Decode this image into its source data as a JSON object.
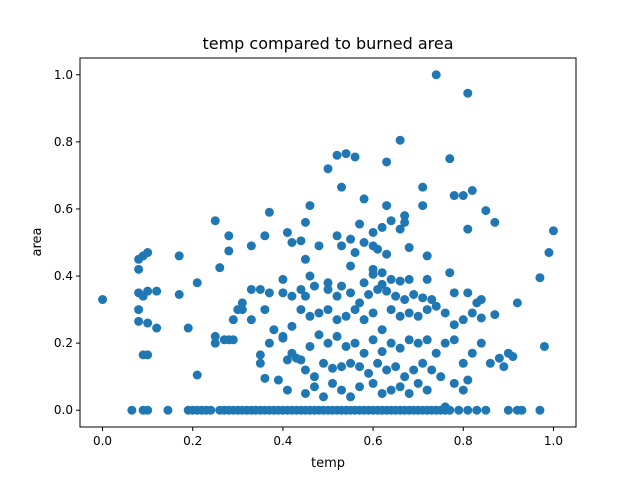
{
  "chart_data": {
    "type": "scatter",
    "title": "temp compared to burned area",
    "xlabel": "temp",
    "ylabel": "area",
    "xlim": [
      -0.05,
      1.05
    ],
    "ylim": [
      -0.05,
      1.05
    ],
    "xticks": [
      {
        "value": 0.0,
        "label": "0.0"
      },
      {
        "value": 0.2,
        "label": "0.2"
      },
      {
        "value": 0.4,
        "label": "0.4"
      },
      {
        "value": 0.6,
        "label": "0.6"
      },
      {
        "value": 0.8,
        "label": "0.8"
      },
      {
        "value": 1.0,
        "label": "1.0"
      }
    ],
    "yticks": [
      {
        "value": 0.0,
        "label": "0.0"
      },
      {
        "value": 0.2,
        "label": "0.2"
      },
      {
        "value": 0.4,
        "label": "0.4"
      },
      {
        "value": 0.6,
        "label": "0.6"
      },
      {
        "value": 0.8,
        "label": "0.8"
      },
      {
        "value": 1.0,
        "label": "1.0"
      }
    ],
    "grid": false,
    "legend": "none",
    "marker_color": "#1f77b4",
    "series": [
      {
        "points": [
          [
            0.74,
            1.0
          ],
          [
            0.81,
            0.945
          ],
          [
            0.66,
            0.805
          ],
          [
            0.77,
            0.75
          ],
          [
            0.5,
            0.72
          ],
          [
            0.52,
            0.76
          ],
          [
            0.54,
            0.765
          ],
          [
            0.56,
            0.755
          ],
          [
            0.63,
            0.74
          ],
          [
            0.53,
            0.665
          ],
          [
            0.71,
            0.665
          ],
          [
            0.58,
            0.63
          ],
          [
            0.78,
            0.64
          ],
          [
            0.8,
            0.64
          ],
          [
            0.82,
            0.655
          ],
          [
            0.63,
            0.61
          ],
          [
            0.46,
            0.61
          ],
          [
            0.71,
            0.61
          ],
          [
            0.85,
            0.595
          ],
          [
            0.25,
            0.565
          ],
          [
            0.37,
            0.59
          ],
          [
            0.45,
            0.56
          ],
          [
            0.57,
            0.555
          ],
          [
            0.64,
            0.565
          ],
          [
            0.67,
            0.58
          ],
          [
            0.81,
            0.54
          ],
          [
            0.87,
            0.56
          ],
          [
            0.41,
            0.53
          ],
          [
            0.52,
            0.52
          ],
          [
            0.55,
            0.51
          ],
          [
            0.6,
            0.53
          ],
          [
            0.62,
            0.545
          ],
          [
            0.66,
            0.54
          ],
          [
            0.67,
            0.56
          ],
          [
            1.0,
            0.535
          ],
          [
            0.28,
            0.52
          ],
          [
            0.33,
            0.49
          ],
          [
            0.36,
            0.52
          ],
          [
            0.42,
            0.5
          ],
          [
            0.44,
            0.505
          ],
          [
            0.48,
            0.49
          ],
          [
            0.53,
            0.49
          ],
          [
            0.56,
            0.47
          ],
          [
            0.58,
            0.5
          ],
          [
            0.6,
            0.49
          ],
          [
            0.61,
            0.48
          ],
          [
            0.63,
            0.465
          ],
          [
            0.68,
            0.485
          ],
          [
            0.72,
            0.46
          ],
          [
            0.99,
            0.47
          ],
          [
            0.08,
            0.45
          ],
          [
            0.09,
            0.46
          ],
          [
            0.1,
            0.47
          ],
          [
            0.17,
            0.46
          ],
          [
            0.26,
            0.425
          ],
          [
            0.28,
            0.475
          ],
          [
            0.45,
            0.45
          ],
          [
            0.55,
            0.43
          ],
          [
            0.6,
            0.42
          ],
          [
            0.62,
            0.41
          ],
          [
            0.08,
            0.42
          ],
          [
            0.21,
            0.38
          ],
          [
            0.4,
            0.39
          ],
          [
            0.44,
            0.36
          ],
          [
            0.46,
            0.4
          ],
          [
            0.5,
            0.38
          ],
          [
            0.53,
            0.37
          ],
          [
            0.58,
            0.38
          ],
          [
            0.6,
            0.405
          ],
          [
            0.62,
            0.375
          ],
          [
            0.64,
            0.39
          ],
          [
            0.66,
            0.385
          ],
          [
            0.68,
            0.39
          ],
          [
            0.72,
            0.39
          ],
          [
            0.77,
            0.41
          ],
          [
            0.97,
            0.395
          ],
          [
            0.08,
            0.35
          ],
          [
            0.09,
            0.34
          ],
          [
            0.1,
            0.355
          ],
          [
            0.12,
            0.355
          ],
          [
            0.17,
            0.345
          ],
          [
            0.3,
            0.3
          ],
          [
            0.31,
            0.32
          ],
          [
            0.33,
            0.36
          ],
          [
            0.35,
            0.36
          ],
          [
            0.37,
            0.35
          ],
          [
            0.4,
            0.35
          ],
          [
            0.42,
            0.34
          ],
          [
            0.45,
            0.34
          ],
          [
            0.47,
            0.37
          ],
          [
            0.5,
            0.36
          ],
          [
            0.52,
            0.34
          ],
          [
            0.55,
            0.35
          ],
          [
            0.57,
            0.32
          ],
          [
            0.59,
            0.345
          ],
          [
            0.61,
            0.36
          ],
          [
            0.63,
            0.355
          ],
          [
            0.65,
            0.34
          ],
          [
            0.67,
            0.33
          ],
          [
            0.69,
            0.345
          ],
          [
            0.71,
            0.335
          ],
          [
            0.73,
            0.33
          ],
          [
            0.78,
            0.35
          ],
          [
            0.81,
            0.35
          ],
          [
            0.83,
            0.32
          ],
          [
            0.84,
            0.33
          ],
          [
            0.92,
            0.32
          ],
          [
            0.0,
            0.33
          ],
          [
            0.08,
            0.3
          ],
          [
            0.08,
            0.265
          ],
          [
            0.1,
            0.26
          ],
          [
            0.12,
            0.245
          ],
          [
            0.19,
            0.245
          ],
          [
            0.25,
            0.22
          ],
          [
            0.27,
            0.21
          ],
          [
            0.29,
            0.27
          ],
          [
            0.31,
            0.3
          ],
          [
            0.33,
            0.27
          ],
          [
            0.36,
            0.3
          ],
          [
            0.38,
            0.24
          ],
          [
            0.4,
            0.22
          ],
          [
            0.42,
            0.25
          ],
          [
            0.44,
            0.3
          ],
          [
            0.46,
            0.28
          ],
          [
            0.48,
            0.29
          ],
          [
            0.5,
            0.3
          ],
          [
            0.52,
            0.27
          ],
          [
            0.54,
            0.28
          ],
          [
            0.56,
            0.3
          ],
          [
            0.58,
            0.27
          ],
          [
            0.6,
            0.29
          ],
          [
            0.62,
            0.24
          ],
          [
            0.64,
            0.3
          ],
          [
            0.66,
            0.28
          ],
          [
            0.68,
            0.29
          ],
          [
            0.7,
            0.28
          ],
          [
            0.72,
            0.3
          ],
          [
            0.74,
            0.31
          ],
          [
            0.76,
            0.29
          ],
          [
            0.78,
            0.255
          ],
          [
            0.8,
            0.27
          ],
          [
            0.82,
            0.29
          ],
          [
            0.84,
            0.275
          ],
          [
            0.87,
            0.285
          ],
          [
            0.25,
            0.2
          ],
          [
            0.28,
            0.21
          ],
          [
            0.29,
            0.21
          ],
          [
            0.35,
            0.165
          ],
          [
            0.37,
            0.2
          ],
          [
            0.4,
            0.215
          ],
          [
            0.42,
            0.17
          ],
          [
            0.44,
            0.15
          ],
          [
            0.46,
            0.19
          ],
          [
            0.48,
            0.225
          ],
          [
            0.5,
            0.2
          ],
          [
            0.52,
            0.22
          ],
          [
            0.54,
            0.19
          ],
          [
            0.56,
            0.2
          ],
          [
            0.58,
            0.17
          ],
          [
            0.6,
            0.21
          ],
          [
            0.62,
            0.175
          ],
          [
            0.64,
            0.2
          ],
          [
            0.66,
            0.185
          ],
          [
            0.68,
            0.21
          ],
          [
            0.7,
            0.2
          ],
          [
            0.72,
            0.21
          ],
          [
            0.74,
            0.17
          ],
          [
            0.76,
            0.2
          ],
          [
            0.78,
            0.21
          ],
          [
            0.8,
            0.14
          ],
          [
            0.82,
            0.17
          ],
          [
            0.84,
            0.2
          ],
          [
            0.86,
            0.14
          ],
          [
            0.88,
            0.155
          ],
          [
            0.9,
            0.17
          ],
          [
            0.91,
            0.16
          ],
          [
            0.98,
            0.19
          ],
          [
            0.09,
            0.165
          ],
          [
            0.1,
            0.165
          ],
          [
            0.21,
            0.105
          ],
          [
            0.35,
            0.14
          ],
          [
            0.36,
            0.095
          ],
          [
            0.39,
            0.09
          ],
          [
            0.41,
            0.15
          ],
          [
            0.43,
            0.155
          ],
          [
            0.45,
            0.12
          ],
          [
            0.47,
            0.1
          ],
          [
            0.49,
            0.14
          ],
          [
            0.51,
            0.125
          ],
          [
            0.53,
            0.13
          ],
          [
            0.55,
            0.14
          ],
          [
            0.57,
            0.13
          ],
          [
            0.59,
            0.11
          ],
          [
            0.61,
            0.14
          ],
          [
            0.63,
            0.12
          ],
          [
            0.65,
            0.13
          ],
          [
            0.67,
            0.1
          ],
          [
            0.69,
            0.12
          ],
          [
            0.71,
            0.14
          ],
          [
            0.73,
            0.12
          ],
          [
            0.75,
            0.1
          ],
          [
            0.81,
            0.09
          ],
          [
            0.89,
            0.13
          ],
          [
            0.41,
            0.06
          ],
          [
            0.45,
            0.05
          ],
          [
            0.47,
            0.07
          ],
          [
            0.49,
            0.04
          ],
          [
            0.51,
            0.08
          ],
          [
            0.53,
            0.06
          ],
          [
            0.55,
            0.04
          ],
          [
            0.57,
            0.07
          ],
          [
            0.6,
            0.08
          ],
          [
            0.62,
            0.05
          ],
          [
            0.64,
            0.06
          ],
          [
            0.66,
            0.07
          ],
          [
            0.68,
            0.05
          ],
          [
            0.7,
            0.08
          ],
          [
            0.72,
            0.06
          ],
          [
            0.76,
            0.01
          ],
          [
            0.78,
            0.08
          ],
          [
            0.8,
            0.06
          ],
          [
            0.065,
            0.0
          ],
          [
            0.1,
            0.0
          ],
          [
            0.09,
            0.0
          ],
          [
            0.145,
            0.0
          ],
          [
            0.19,
            0.0
          ],
          [
            0.2,
            0.0
          ],
          [
            0.21,
            0.0
          ],
          [
            0.22,
            0.0
          ],
          [
            0.23,
            0.0
          ],
          [
            0.24,
            0.0
          ],
          [
            0.26,
            0.0
          ],
          [
            0.27,
            0.0
          ],
          [
            0.28,
            0.0
          ],
          [
            0.29,
            0.0
          ],
          [
            0.3,
            0.0
          ],
          [
            0.31,
            0.0
          ],
          [
            0.32,
            0.0
          ],
          [
            0.33,
            0.0
          ],
          [
            0.34,
            0.0
          ],
          [
            0.35,
            0.0
          ],
          [
            0.36,
            0.0
          ],
          [
            0.37,
            0.0
          ],
          [
            0.38,
            0.0
          ],
          [
            0.39,
            0.0
          ],
          [
            0.4,
            0.0
          ],
          [
            0.41,
            0.0
          ],
          [
            0.42,
            0.0
          ],
          [
            0.43,
            0.0
          ],
          [
            0.44,
            0.0
          ],
          [
            0.45,
            0.0
          ],
          [
            0.46,
            0.0
          ],
          [
            0.47,
            0.0
          ],
          [
            0.48,
            0.0
          ],
          [
            0.49,
            0.0
          ],
          [
            0.5,
            0.0
          ],
          [
            0.51,
            0.0
          ],
          [
            0.52,
            0.0
          ],
          [
            0.53,
            0.0
          ],
          [
            0.54,
            0.0
          ],
          [
            0.55,
            0.0
          ],
          [
            0.56,
            0.0
          ],
          [
            0.57,
            0.0
          ],
          [
            0.58,
            0.0
          ],
          [
            0.59,
            0.0
          ],
          [
            0.6,
            0.0
          ],
          [
            0.61,
            0.0
          ],
          [
            0.62,
            0.0
          ],
          [
            0.63,
            0.0
          ],
          [
            0.64,
            0.0
          ],
          [
            0.65,
            0.0
          ],
          [
            0.66,
            0.0
          ],
          [
            0.67,
            0.0
          ],
          [
            0.68,
            0.0
          ],
          [
            0.69,
            0.0
          ],
          [
            0.7,
            0.0
          ],
          [
            0.71,
            0.0
          ],
          [
            0.72,
            0.0
          ],
          [
            0.73,
            0.0
          ],
          [
            0.74,
            0.0
          ],
          [
            0.75,
            0.0
          ],
          [
            0.76,
            0.0
          ],
          [
            0.77,
            0.0
          ],
          [
            0.79,
            0.0
          ],
          [
            0.81,
            0.0
          ],
          [
            0.83,
            0.0
          ],
          [
            0.85,
            0.0
          ],
          [
            0.9,
            0.0
          ],
          [
            0.92,
            0.0
          ],
          [
            0.93,
            0.0
          ],
          [
            0.97,
            0.0
          ]
        ]
      }
    ]
  }
}
